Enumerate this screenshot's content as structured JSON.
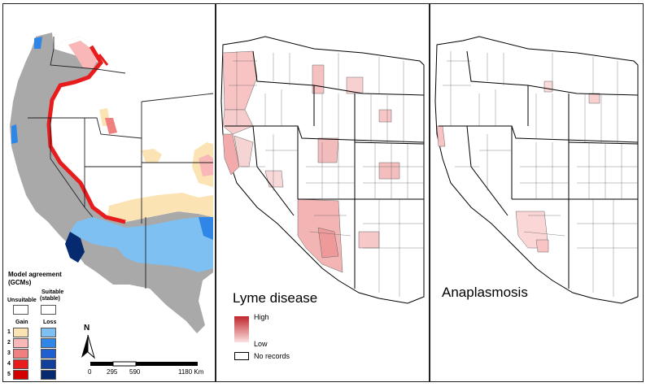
{
  "model_panel": {
    "legend_title": "Model agreement",
    "legend_subtitle": "(GCMs)",
    "unsuitable_label": "Unsuitable",
    "suitable_label": "Suitable",
    "suitable_sub": "(stable)",
    "gain_label": "Gain",
    "loss_label": "Loss",
    "levels": [
      {
        "label": "1",
        "gain_color": "#fbe3b4",
        "loss_color": "#7fc0f2"
      },
      {
        "label": "2",
        "gain_color": "#f9b7b7",
        "loss_color": "#2f86e6"
      },
      {
        "label": "3",
        "gain_color": "#f07f7f",
        "loss_color": "#1f5fd1"
      },
      {
        "label": "4",
        "gain_color": "#e81c1c",
        "loss_color": "#123f9c"
      },
      {
        "label": "5",
        "gain_color": "#d40000",
        "loss_color": "#062a70"
      }
    ],
    "north_label": "N",
    "scale_labels": [
      "0",
      "295",
      "590",
      "1180 Km"
    ],
    "colors": {
      "unsuitable_gray": "#a9a9a9",
      "stable": "#ffffff"
    }
  },
  "lyme_panel": {
    "title": "Lyme disease",
    "legend_high": "High",
    "legend_low": "Low",
    "no_records": "No records",
    "colors": {
      "high": "#c0252a",
      "low": "#fbe0e0"
    }
  },
  "ana_panel": {
    "title": "Anaplasmosis",
    "colors": {
      "fill": "#fbd6d6"
    }
  }
}
